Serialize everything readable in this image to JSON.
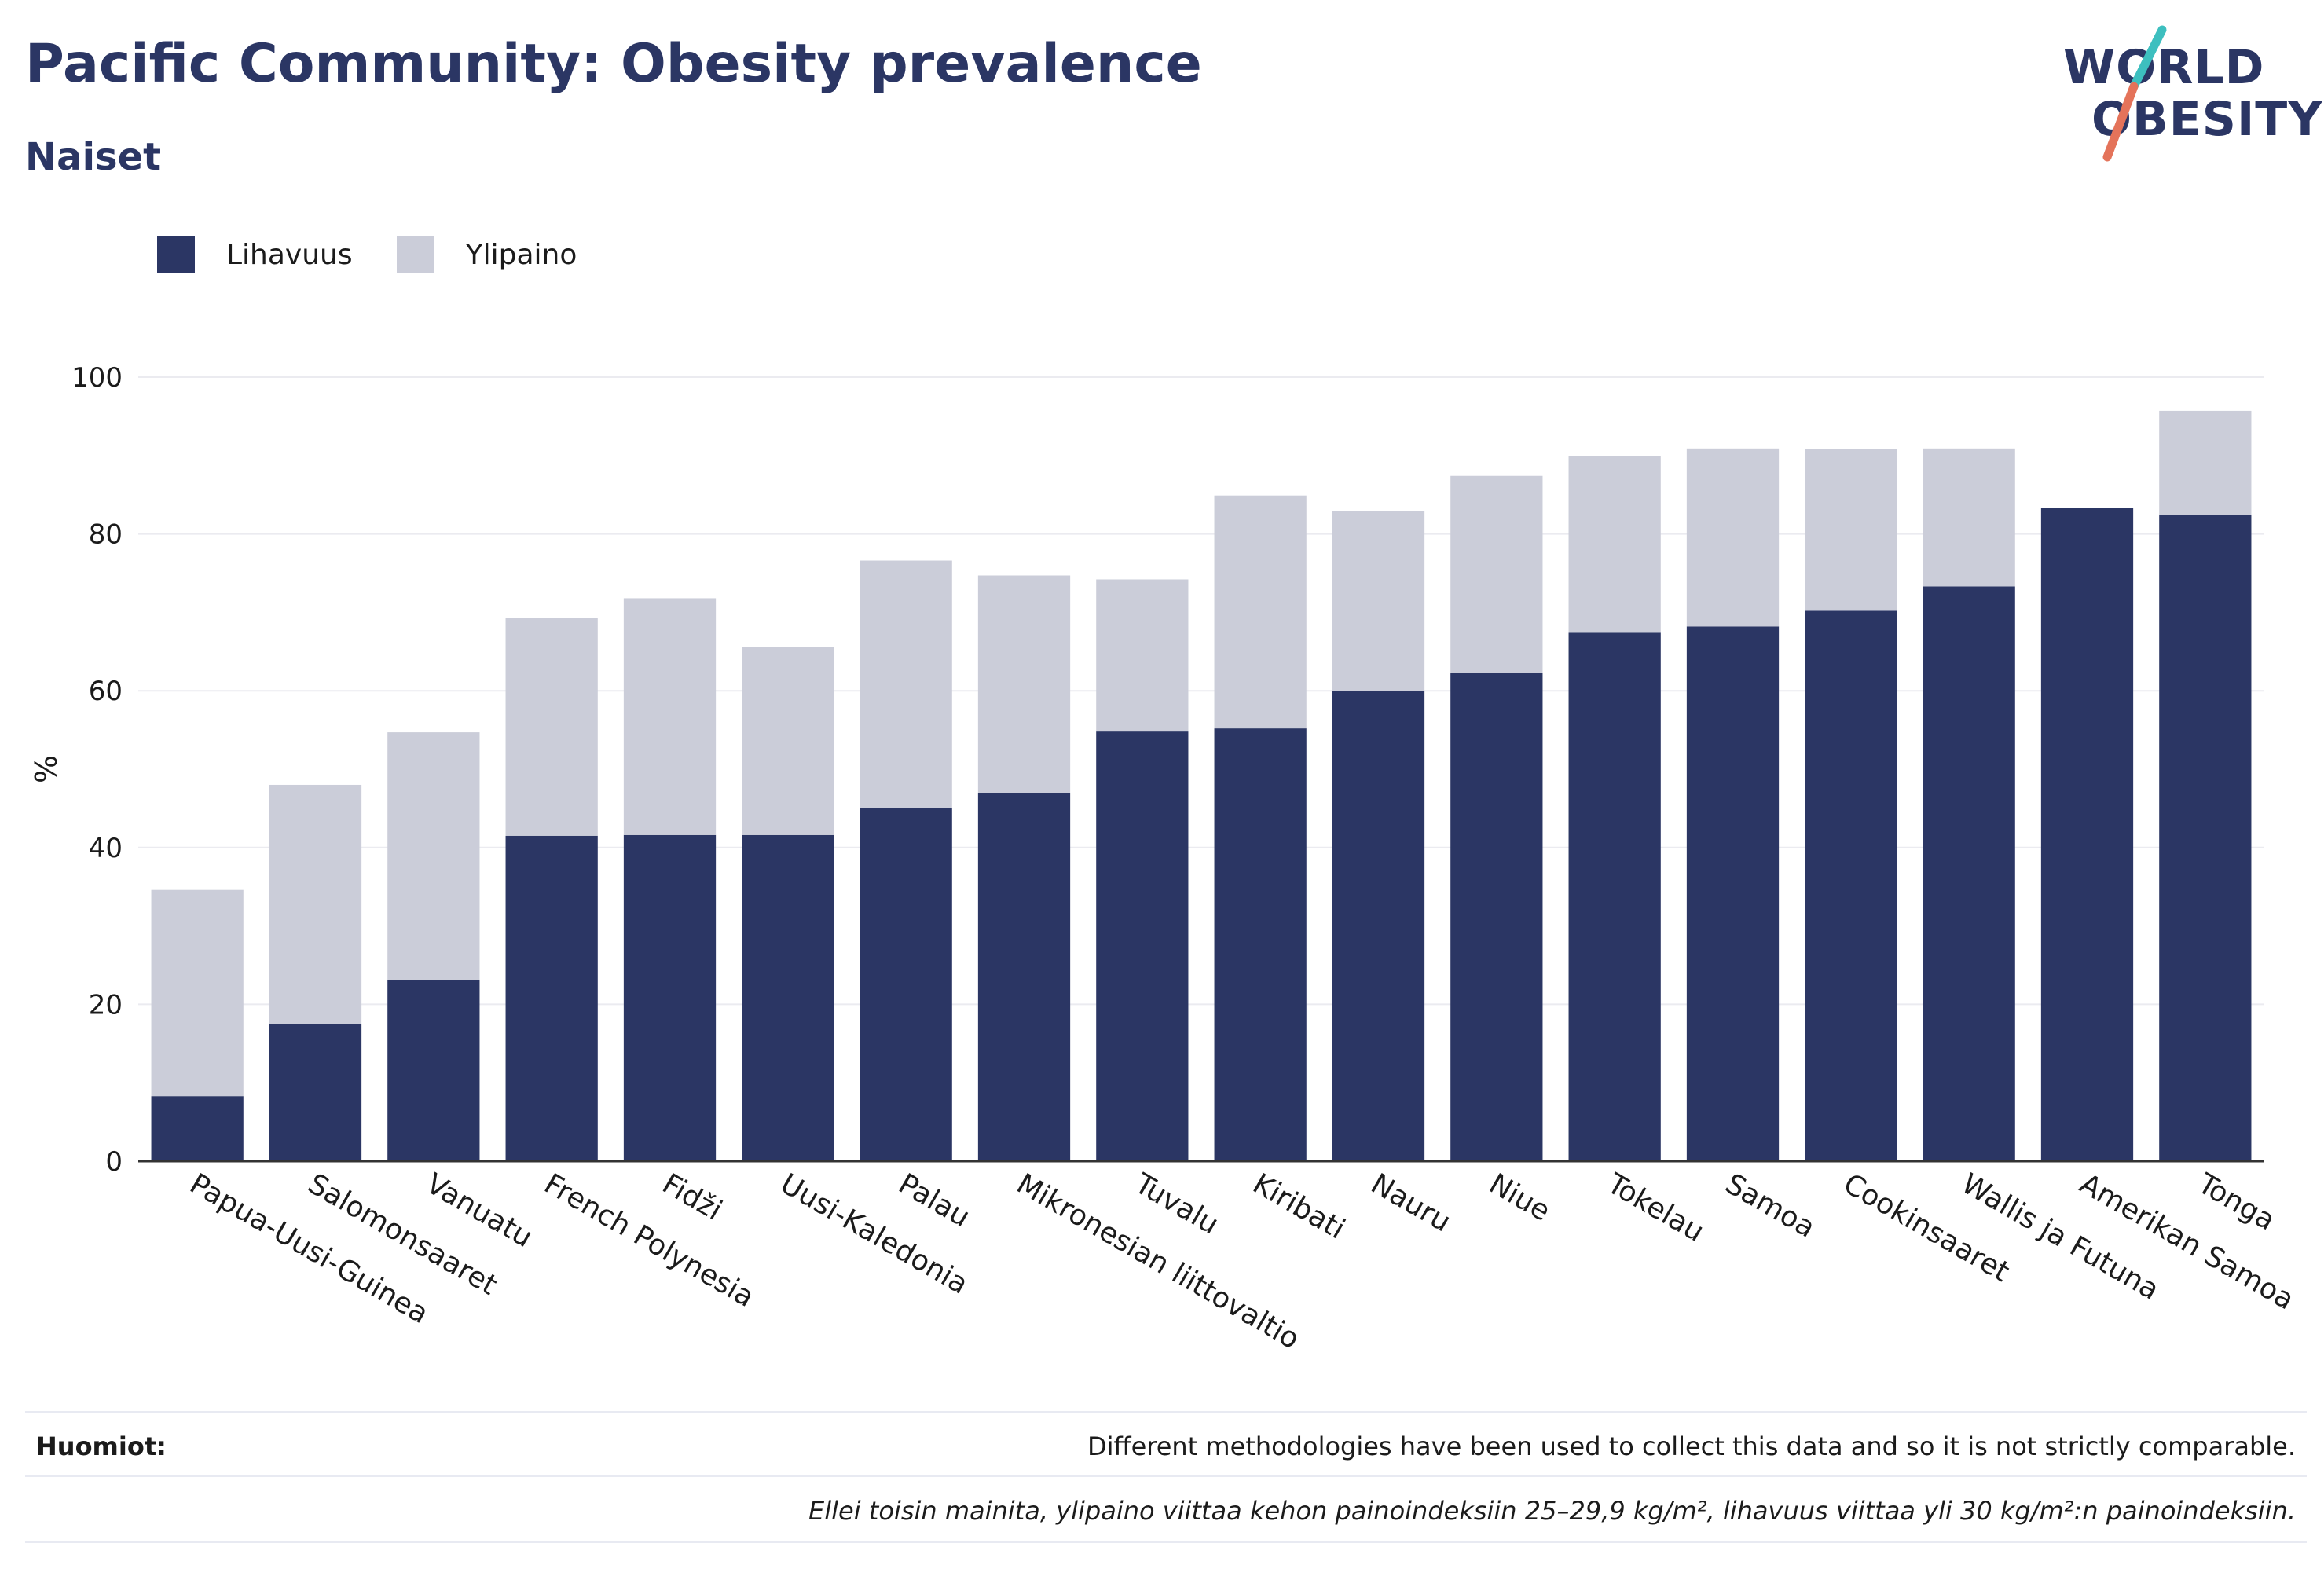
{
  "header": {
    "title": "Pacific Community: Obesity prevalence",
    "subtitle": "Naiset",
    "logo_line1": "WORLD",
    "logo_line2": "OBESITY"
  },
  "colors": {
    "obesity": "#2b3664",
    "overweight": "#cbcdd9",
    "logo_slash_teal": "#3dbfbf",
    "logo_slash_coral": "#e4735a"
  },
  "legend": {
    "items": [
      {
        "label": "Lihavuus",
        "color": "#2b3664"
      },
      {
        "label": "Ylipaino",
        "color": "#cbcdd9"
      }
    ]
  },
  "chart_data": {
    "type": "bar",
    "stacked": true,
    "title": "Pacific Community: Obesity prevalence",
    "subtitle": "Naiset",
    "ylabel": "%",
    "ylim": [
      0,
      100
    ],
    "yticks": [
      0,
      20,
      40,
      60,
      80,
      100
    ],
    "grid": true,
    "legend_position": "top-left",
    "categories": [
      "Papua-Uusi-Guinea",
      "Salomonsaaret",
      "Vanuatu",
      "French Polynesia",
      "Fidži",
      "Uusi-Kaledonia",
      "Palau",
      "Mikronesian liittovaltio",
      "Tuvalu",
      "Kiribati",
      "Nauru",
      "Niue",
      "Tokelau",
      "Samoa",
      "Cookinsaaret",
      "Wallis ja Futuna",
      "Amerikan Samoa",
      "Tonga"
    ],
    "series": [
      {
        "name": "Lihavuus",
        "values": [
          8.3,
          17.5,
          23.1,
          41.5,
          41.6,
          41.6,
          45.0,
          46.9,
          54.8,
          55.2,
          60.0,
          62.3,
          67.4,
          68.2,
          70.2,
          73.3,
          83.3,
          82.4
        ]
      },
      {
        "name": "Ylipaino",
        "values": [
          26.3,
          30.5,
          31.6,
          27.8,
          30.2,
          24.0,
          31.6,
          27.8,
          19.4,
          29.7,
          22.9,
          25.1,
          22.5,
          22.7,
          20.6,
          17.6,
          0,
          13.3
        ]
      }
    ]
  },
  "notes": {
    "label": "Huomiot:",
    "text": "Different methodologies have been used to collect this data and so it is not strictly comparable.",
    "definition": "Ellei toisin mainita, ylipaino viittaa kehon painoindeksiin 25–29,9 kg/m², lihavuus viittaa yli 30 kg/m²:n painoindeksiin."
  }
}
